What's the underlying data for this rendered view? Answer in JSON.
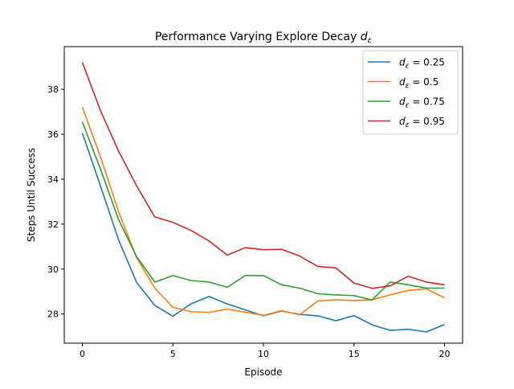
{
  "chart_data": {
    "type": "line",
    "title": "Performance Varying Explore Decay",
    "title_symbol": {
      "base": "d",
      "sub": "ε"
    },
    "xlabel": "Episode",
    "ylabel": "Steps Until Success",
    "xlim": [
      -1,
      21
    ],
    "ylim": [
      26.7,
      39.9
    ],
    "x_ticks": [
      0,
      5,
      10,
      15,
      20
    ],
    "y_ticks": [
      28,
      30,
      32,
      34,
      36,
      38
    ],
    "grid": false,
    "legend_position": "top-right",
    "x": [
      0,
      1,
      2,
      3,
      4,
      5,
      6,
      7,
      8,
      9,
      10,
      11,
      12,
      13,
      14,
      15,
      16,
      17,
      18,
      19,
      20
    ],
    "series": [
      {
        "name": "d_ε = 0.25",
        "legend": {
          "base": "d",
          "sub": "ε",
          "text": " = 0.25"
        },
        "color": "#1f77b4",
        "values": [
          36.05,
          33.7,
          31.3,
          29.4,
          28.38,
          27.9,
          28.45,
          28.78,
          28.45,
          28.18,
          27.92,
          28.13,
          27.98,
          27.92,
          27.7,
          27.93,
          27.52,
          27.27,
          27.32,
          27.2,
          27.53
        ]
      },
      {
        "name": "d_ε = 0.5",
        "legend": {
          "base": "d",
          "sub": "ε",
          "text": " = 0.5"
        },
        "color": "#ff7f0e",
        "values": [
          37.2,
          35.0,
          32.55,
          30.5,
          29.15,
          28.3,
          28.1,
          28.07,
          28.22,
          28.08,
          27.94,
          28.15,
          27.96,
          28.58,
          28.63,
          28.6,
          28.63,
          28.85,
          29.05,
          29.12,
          28.72
        ]
      },
      {
        "name": "d_ε = 0.75",
        "legend": {
          "base": "d",
          "sub": "ε",
          "text": " = 0.75"
        },
        "color": "#2ca02c",
        "values": [
          36.55,
          34.45,
          32.2,
          30.55,
          29.42,
          29.71,
          29.49,
          29.42,
          29.19,
          29.71,
          29.71,
          29.3,
          29.15,
          28.9,
          28.85,
          28.82,
          28.62,
          29.42,
          29.3,
          29.15,
          29.15
        ]
      },
      {
        "name": "d_ε = 0.95",
        "legend": {
          "base": "d",
          "sub": "ε",
          "text": " = 0.95"
        },
        "color": "#d62728",
        "values": [
          39.2,
          37.05,
          35.25,
          33.7,
          32.32,
          32.08,
          31.72,
          31.25,
          30.62,
          30.95,
          30.86,
          30.88,
          30.58,
          30.12,
          30.05,
          29.38,
          29.14,
          29.25,
          29.68,
          29.42,
          29.3
        ]
      }
    ]
  }
}
